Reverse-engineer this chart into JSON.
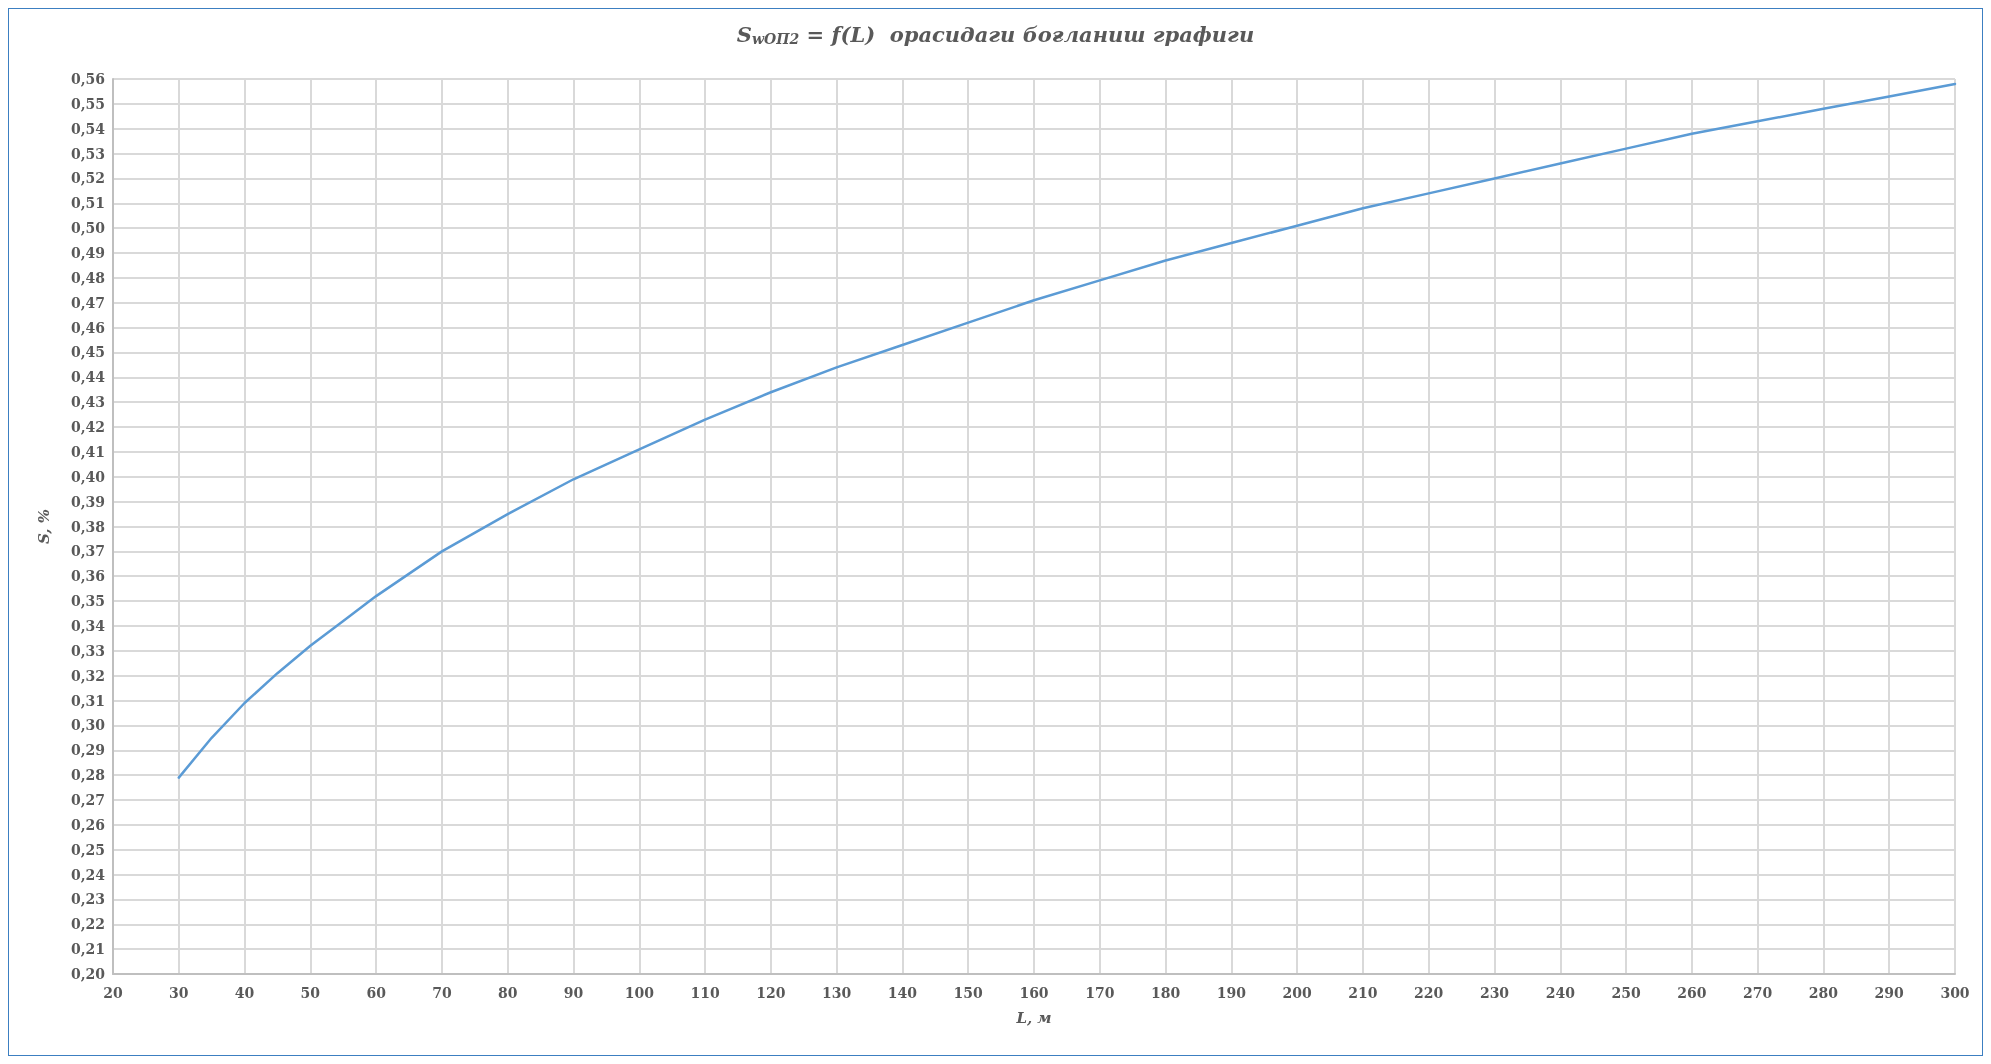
{
  "chart_data": {
    "type": "line",
    "title": "S$_{wОП2}$ = f(L)  орасидаги боғланиш графиги",
    "xlabel": "L, м",
    "ylabel": "S, %",
    "x": [
      30,
      35,
      40,
      45,
      50,
      55,
      60,
      70,
      80,
      90,
      100,
      110,
      120,
      130,
      140,
      150,
      160,
      170,
      180,
      190,
      200,
      210,
      220,
      230,
      240,
      250,
      260,
      270,
      280,
      290,
      300
    ],
    "series": [
      {
        "color": "#5b9bd5",
        "values": [
          0.279,
          0.295,
          0.309,
          0.321,
          0.332,
          0.342,
          0.352,
          0.37,
          0.385,
          0.399,
          0.411,
          0.423,
          0.434,
          0.444,
          0.453,
          0.462,
          0.471,
          0.479,
          0.487,
          0.494,
          0.501,
          0.508,
          0.514,
          0.52,
          0.526,
          0.532,
          0.538,
          0.543,
          0.548,
          0.553,
          0.558
        ]
      }
    ],
    "xlim": [
      20,
      300
    ],
    "xticks": [
      20,
      30,
      40,
      50,
      60,
      70,
      80,
      90,
      100,
      110,
      120,
      130,
      140,
      150,
      160,
      170,
      180,
      190,
      200,
      210,
      220,
      230,
      240,
      250,
      260,
      270,
      280,
      290,
      300
    ],
    "ylim": [
      0.2,
      0.56
    ],
    "yticks": [
      {
        "value": 0.2,
        "label": "0,20"
      },
      {
        "value": 0.21,
        "label": "0,21"
      },
      {
        "value": 0.22,
        "label": "0,22"
      },
      {
        "value": 0.23,
        "label": "0,23"
      },
      {
        "value": 0.24,
        "label": "0,24"
      },
      {
        "value": 0.25,
        "label": "0,25"
      },
      {
        "value": 0.26,
        "label": "0,26"
      },
      {
        "value": 0.27,
        "label": "0,27"
      },
      {
        "value": 0.28,
        "label": "0,28"
      },
      {
        "value": 0.29,
        "label": "0,29"
      },
      {
        "value": 0.3,
        "label": "0,30"
      },
      {
        "value": 0.31,
        "label": "0,31"
      },
      {
        "value": 0.32,
        "label": "0,32"
      },
      {
        "value": 0.33,
        "label": "0,33"
      },
      {
        "value": 0.34,
        "label": "0,34"
      },
      {
        "value": 0.35,
        "label": "0,35"
      },
      {
        "value": 0.36,
        "label": "0,36"
      },
      {
        "value": 0.37,
        "label": "0,37"
      },
      {
        "value": 0.38,
        "label": "0,38"
      },
      {
        "value": 0.39,
        "label": "0,39"
      },
      {
        "value": 0.4,
        "label": "0,40"
      },
      {
        "value": 0.41,
        "label": "0,41"
      },
      {
        "value": 0.42,
        "label": "0,42"
      },
      {
        "value": 0.43,
        "label": "0,43"
      },
      {
        "value": 0.44,
        "label": "0,44"
      },
      {
        "value": 0.45,
        "label": "0,45"
      },
      {
        "value": 0.46,
        "label": "0,46"
      },
      {
        "value": 0.47,
        "label": "0,47"
      },
      {
        "value": 0.48,
        "label": "0,48"
      },
      {
        "value": 0.49,
        "label": "0,49"
      },
      {
        "value": 0.5,
        "label": "0,50"
      },
      {
        "value": 0.51,
        "label": "0,51"
      },
      {
        "value": 0.52,
        "label": "0,52"
      },
      {
        "value": 0.53,
        "label": "0,53"
      },
      {
        "value": 0.54,
        "label": "0,54"
      },
      {
        "value": 0.55,
        "label": "0,55"
      },
      {
        "value": 0.56,
        "label": "0,56"
      }
    ],
    "grid": true,
    "marker": "none",
    "line_style": "solid"
  }
}
